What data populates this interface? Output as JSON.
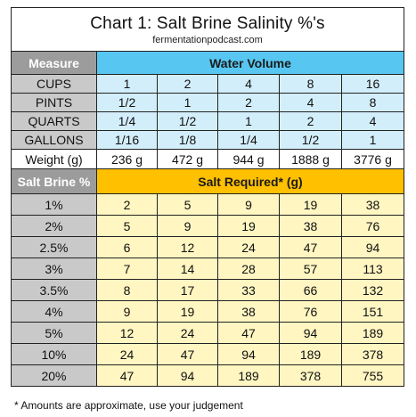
{
  "title": "Chart 1: Salt Brine Salinity %'s",
  "subtitle": "fermentationpodcast.com",
  "water_section": {
    "left_header": "Measure",
    "header": "Water Volume",
    "rows": [
      {
        "label": "CUPS",
        "values": [
          "1",
          "2",
          "4",
          "8",
          "16"
        ]
      },
      {
        "label": "PINTS",
        "values": [
          "1/2",
          "1",
          "2",
          "4",
          "8"
        ]
      },
      {
        "label": "QUARTS",
        "values": [
          "1/4",
          "1/2",
          "1",
          "2",
          "4"
        ]
      },
      {
        "label": "GALLONS",
        "values": [
          "1/16",
          "1/8",
          "1/4",
          "1/2",
          "1"
        ]
      }
    ],
    "weight_row": {
      "label": "Weight (g)",
      "values": [
        "236 g",
        "472 g",
        "944 g",
        "1888 g",
        "3776 g"
      ]
    }
  },
  "salt_section": {
    "left_header": "Salt Brine %",
    "header": "Salt Required* (g)",
    "rows": [
      {
        "label": "1%",
        "values": [
          "2",
          "5",
          "9",
          "19",
          "38"
        ]
      },
      {
        "label": "2%",
        "values": [
          "5",
          "9",
          "19",
          "38",
          "76"
        ]
      },
      {
        "label": "2.5%",
        "values": [
          "6",
          "12",
          "24",
          "47",
          "94"
        ]
      },
      {
        "label": "3%",
        "values": [
          "7",
          "14",
          "28",
          "57",
          "113"
        ]
      },
      {
        "label": "3.5%",
        "values": [
          "8",
          "17",
          "33",
          "66",
          "132"
        ]
      },
      {
        "label": "4%",
        "values": [
          "9",
          "19",
          "38",
          "76",
          "151"
        ]
      },
      {
        "label": "5%",
        "values": [
          "12",
          "24",
          "47",
          "94",
          "189"
        ]
      },
      {
        "label": "10%",
        "values": [
          "24",
          "47",
          "94",
          "189",
          "378"
        ]
      },
      {
        "label": "20%",
        "values": [
          "47",
          "94",
          "189",
          "378",
          "755"
        ]
      }
    ]
  },
  "footnote": "* Amounts are approximate, use your judgement",
  "colors": {
    "water_header": "#57c6f0",
    "water_cells": "#d3eefb",
    "salt_header": "#ffc000",
    "salt_cells": "#fff6c2",
    "label_column": "#c9c9c9",
    "section_left_header": "#9c9c9c"
  }
}
